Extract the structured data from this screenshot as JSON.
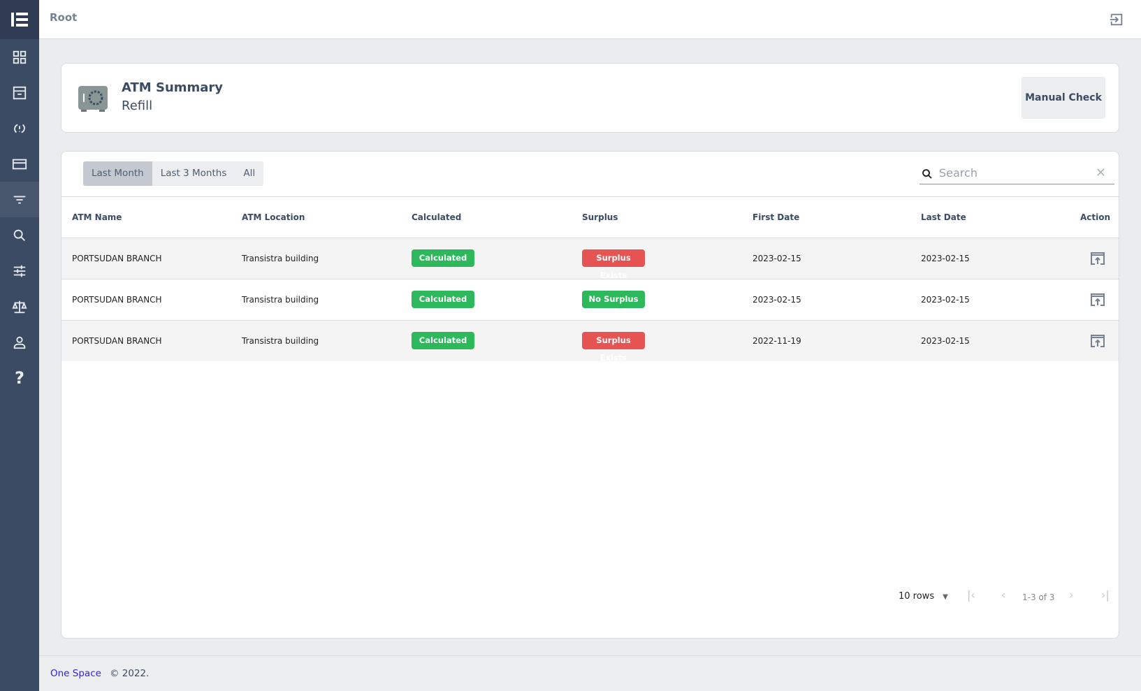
{
  "header": {
    "breadcrumb": "Root"
  },
  "sidebar": {
    "items": [
      {
        "icon": "dashboard-icon"
      },
      {
        "icon": "archive-icon"
      },
      {
        "icon": "sync-icon"
      },
      {
        "icon": "credit-card-icon"
      },
      {
        "icon": "filter-icon",
        "active": true
      },
      {
        "icon": "search-icon"
      },
      {
        "icon": "sliders-icon"
      },
      {
        "icon": "balance-scale-icon"
      },
      {
        "icon": "user-icon"
      },
      {
        "icon": "help-icon"
      }
    ]
  },
  "summary": {
    "title": "ATM Summary",
    "subtitle": "Refill",
    "manual_check": "Manual Check"
  },
  "filters": {
    "tabs": [
      "Last Month",
      "Last 3 Months",
      "All"
    ],
    "selected": "Last Month"
  },
  "search": {
    "placeholder": "Search",
    "value": ""
  },
  "table": {
    "columns": [
      "ATM Name",
      "ATM Location",
      "Calculated",
      "Surplus",
      "First Date",
      "Last Date",
      "Action"
    ],
    "rows": [
      {
        "name": "PORTSUDAN BRANCH",
        "location": "Transistra building",
        "calculated": "Calculated",
        "surplus": "Surplus Exists",
        "first": "2023-02-15",
        "last": "2023-02-15"
      },
      {
        "name": "PORTSUDAN BRANCH",
        "location": "Transistra building",
        "calculated": "Calculated",
        "surplus": "No Surplus",
        "first": "2023-02-15",
        "last": "2023-02-15"
      },
      {
        "name": "PORTSUDAN BRANCH",
        "location": "Transistra building",
        "calculated": "Calculated",
        "surplus": "Surplus Exists",
        "first": "2022-11-19",
        "last": "2023-02-15"
      }
    ]
  },
  "pagination": {
    "rows": "10 rows",
    "range": "1-3 of 3"
  },
  "footer": {
    "brand": "One Space",
    "copy": "© 2022."
  },
  "colors": {
    "green": "#2eb85c",
    "red": "#e55353",
    "sidebar": "#3c4b64"
  }
}
